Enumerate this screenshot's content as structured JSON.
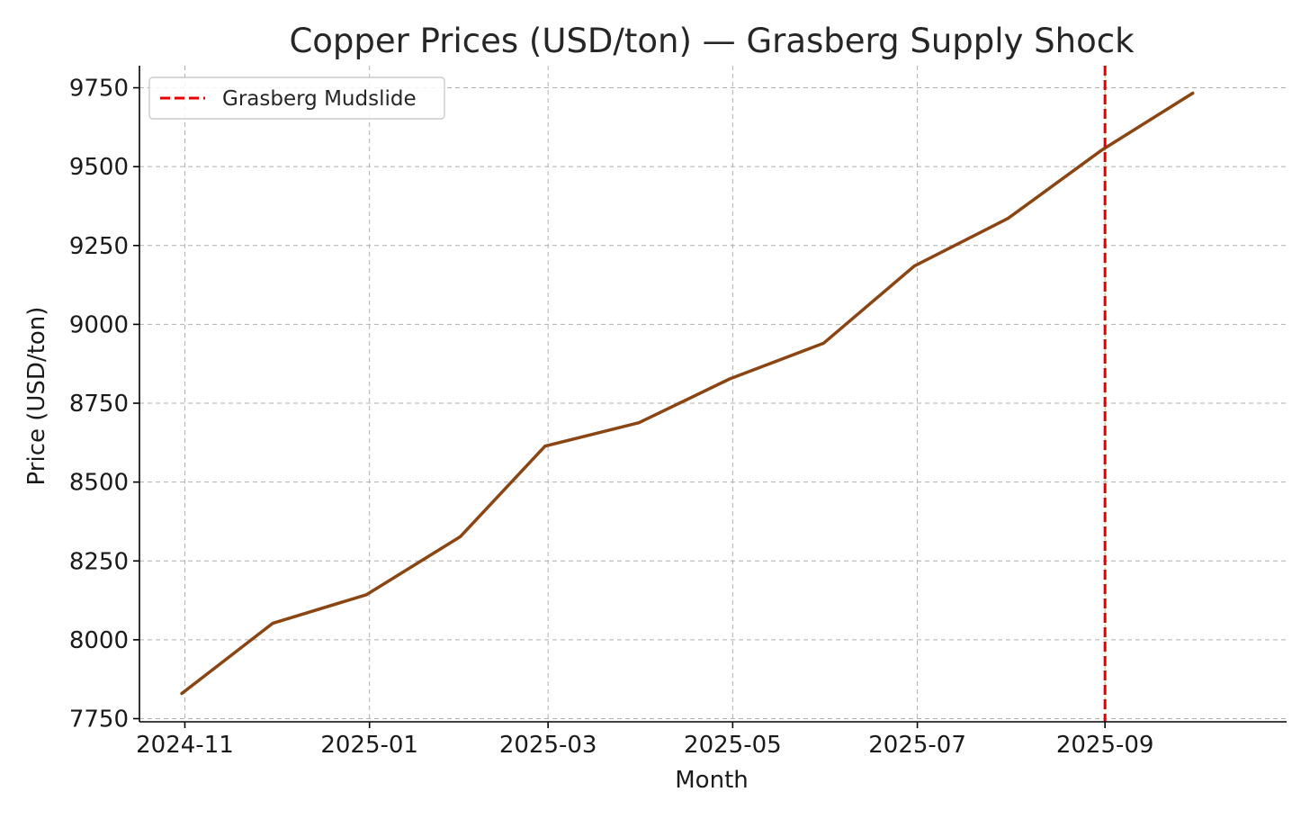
{
  "chart_data": {
    "type": "line",
    "title": "Copper Prices (USD/ton) — Grasberg Supply Shock",
    "xlabel": "Month",
    "ylabel": "Price (USD/ton)",
    "x_ticks": [
      "2024-11",
      "2025-01",
      "2025-03",
      "2025-05",
      "2025-07",
      "2025-09"
    ],
    "y_ticks": [
      7750,
      8000,
      8250,
      8500,
      8750,
      9000,
      9250,
      9500,
      9750
    ],
    "ylim": [
      7740,
      9820
    ],
    "xlim": [
      "2024-10-17",
      "2025-10-31"
    ],
    "grid": true,
    "series": [
      {
        "color": "#8B4513",
        "points": [
          {
            "x": "2024-10-31",
            "y": 7830
          },
          {
            "x": "2024-11-30",
            "y": 8052
          },
          {
            "x": "2024-12-31",
            "y": 8143
          },
          {
            "x": "2025-01-31",
            "y": 8327
          },
          {
            "x": "2025-02-28",
            "y": 8614
          },
          {
            "x": "2025-03-31",
            "y": 8688
          },
          {
            "x": "2025-04-30",
            "y": 8827
          },
          {
            "x": "2025-05-31",
            "y": 8940
          },
          {
            "x": "2025-06-30",
            "y": 9185
          },
          {
            "x": "2025-07-31",
            "y": 9336
          },
          {
            "x": "2025-08-31",
            "y": 9553
          },
          {
            "x": "2025-09-30",
            "y": 9733
          }
        ]
      }
    ],
    "annotations": [
      {
        "type": "vline",
        "x": "2025-09-01",
        "label": "Grasberg Mudslide",
        "color": "#E00000",
        "style": "dashed"
      }
    ],
    "legend": {
      "placement": "top-left",
      "entries": [
        "Grasberg Mudslide"
      ]
    }
  }
}
